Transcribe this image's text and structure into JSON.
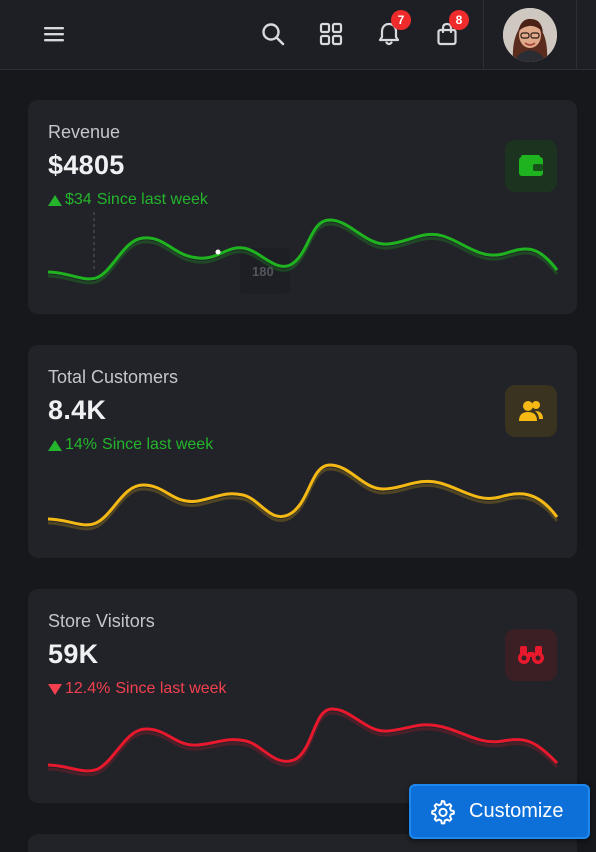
{
  "topbar": {
    "menu_icon": "hamburger-icon",
    "search_icon": "search-icon",
    "apps_icon": "grid-icon",
    "notifications": {
      "icon": "bell-icon",
      "count": "7"
    },
    "cart": {
      "icon": "bag-icon",
      "count": "8"
    },
    "avatar": "user-avatar"
  },
  "cards": [
    {
      "label": "Revenue",
      "value": "$4805",
      "delta_value": "$34",
      "delta_text": "Since last week",
      "trend": "up",
      "icon": "wallet-icon",
      "accent": "#1fb41f",
      "tooltip": "180"
    },
    {
      "label": "Total Customers",
      "value": "8.4K",
      "delta_value": "14%",
      "delta_text": "Since last week",
      "trend": "up",
      "icon": "users-icon",
      "accent": "#f5b915"
    },
    {
      "label": "Store Visitors",
      "value": "59K",
      "delta_value": "12.4%",
      "delta_text": "Since last week",
      "trend": "down",
      "icon": "binoculars-icon",
      "accent": "#e8182d"
    }
  ],
  "customize": {
    "label": "Customize",
    "icon": "gear-icon"
  },
  "colors": {
    "background": "#16181c",
    "card": "#212328",
    "primary": "#0d6fd8",
    "badge": "#ef2b2b"
  }
}
